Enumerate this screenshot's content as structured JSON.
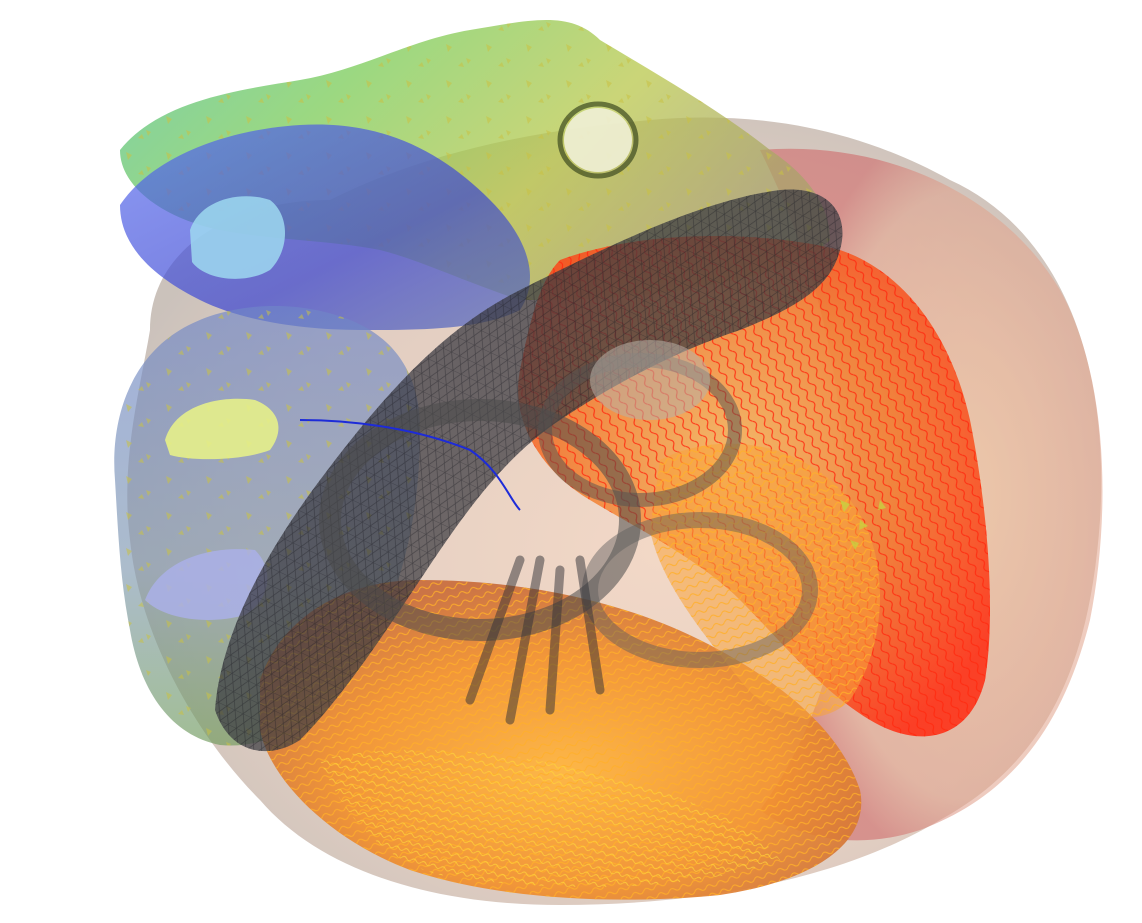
{
  "scene": {
    "subject": "heart-mesh-render",
    "background_color": "#ffffff",
    "colors": {
      "outer_shell": "#c9a58f",
      "outer_rim": "#d46b6b",
      "right_ventricle_fibers": "#ff2a10",
      "left_ventricle_fibers": "#ff9a1a",
      "fiber_highlight": "#ffd23a",
      "left_atrium": "#4f5fe0",
      "atrium_top": "#6cc35a",
      "atrium_yellow": "#d9d250",
      "valve_ring": "#3f3f3f",
      "valve_opening": "#e6f08a"
    }
  }
}
